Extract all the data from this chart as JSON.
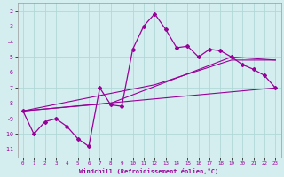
{
  "xlabel": "Windchill (Refroidissement éolien,°C)",
  "background_color": "#d4eef0",
  "grid_color": "#b0d8d8",
  "line_color": "#990099",
  "xlim": [
    -0.5,
    23.5
  ],
  "ylim": [
    -11.5,
    -1.5
  ],
  "yticks": [
    -2,
    -3,
    -4,
    -5,
    -6,
    -7,
    -8,
    -9,
    -10,
    -11
  ],
  "xticks": [
    0,
    1,
    2,
    3,
    4,
    5,
    6,
    7,
    8,
    9,
    10,
    11,
    12,
    13,
    14,
    15,
    16,
    17,
    18,
    19,
    20,
    21,
    22,
    23
  ],
  "line1_x": [
    0,
    1,
    2,
    3,
    4,
    5,
    6,
    7,
    8,
    9,
    10,
    11,
    12,
    13,
    14,
    15,
    16,
    17,
    18,
    19,
    20,
    21,
    22,
    23
  ],
  "line1_y": [
    -8.5,
    -10.0,
    -9.2,
    -9.0,
    -9.5,
    -10.3,
    -10.8,
    -7.0,
    -8.1,
    -8.2,
    -4.5,
    -3.0,
    -2.2,
    -3.2,
    -4.4,
    -4.3,
    -5.0,
    -4.5,
    -4.6,
    -5.0,
    -5.5,
    -5.8,
    -6.2,
    -7.0
  ],
  "line2_x": [
    0,
    23
  ],
  "line2_y": [
    -8.5,
    -7.0
  ],
  "line3_x": [
    0,
    8,
    19,
    23
  ],
  "line3_y": [
    -8.5,
    -8.0,
    -5.0,
    -5.2
  ],
  "line4_x": [
    0,
    7,
    12,
    19,
    23
  ],
  "line4_y": [
    -8.5,
    -7.5,
    -6.8,
    -5.2,
    -5.2
  ]
}
